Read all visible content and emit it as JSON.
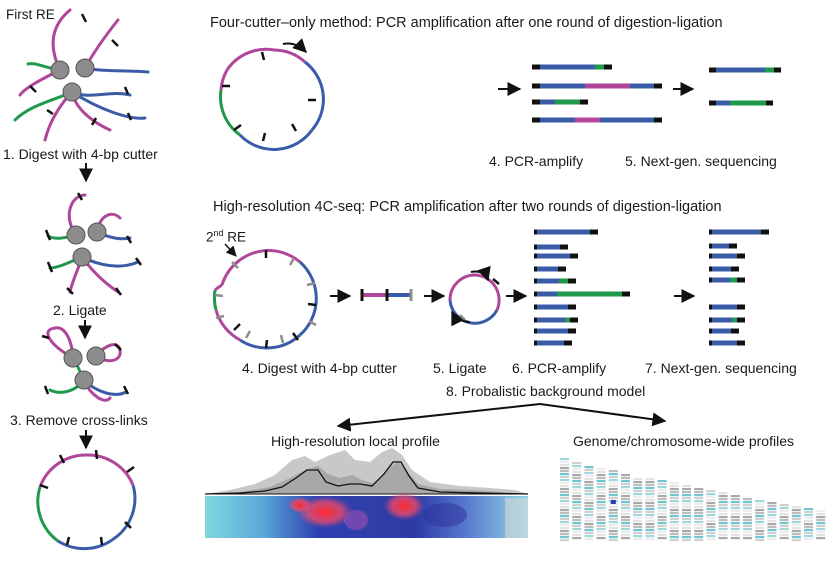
{
  "colors": {
    "magenta": "#b0469a",
    "blue": "#3a5ca8",
    "green": "#1f9a4b",
    "black": "#111111",
    "grey_node": "#8c8c8c",
    "grey_site": "#8d8d8d"
  },
  "steps_left": {
    "first_re": "First RE",
    "step1": "1. Digest with 4-bp cutter",
    "step2": "2. Ligate",
    "step3": "3. Remove cross-links"
  },
  "section_top": {
    "title": "Four-cutter–only method: PCR amplification after one round of digestion-ligation",
    "step4": "4. PCR-amplify",
    "step5": "5. Next-gen. sequencing"
  },
  "section_mid": {
    "title": "High-resolution 4C-seq: PCR amplification after two rounds of digestion-ligation",
    "second_re_num": "2",
    "second_re_sup": "nd",
    "second_re_word": "RE",
    "step4": "4. Digest with 4-bp cutter",
    "step5": "5. Ligate",
    "step6": "6. PCR-amplify",
    "step7": "7. Next-gen. sequencing",
    "step8": "8. Probalistic background model"
  },
  "profiles": {
    "local": "High-resolution local profile",
    "genome": "Genome/chromosome-wide profiles"
  },
  "icons": [
    "arrow-icon",
    "restriction-site-icon",
    "crosslink-node-icon",
    "primer-arrow-icon"
  ]
}
